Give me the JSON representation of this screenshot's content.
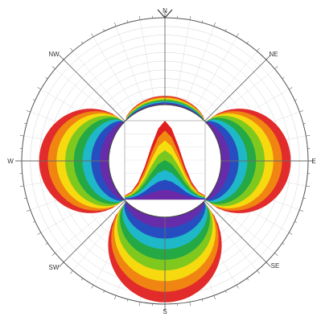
{
  "chart_data": {
    "type": "heatmap",
    "compass": {
      "N": "N",
      "NE": "NE",
      "E": "E",
      "SE": "SE",
      "S": "S",
      "SW": "SW",
      "W": "W",
      "NW": "NW"
    },
    "ring_colors": [
      "#e02020",
      "#f08a10",
      "#f5dd10",
      "#78c820",
      "#20a848",
      "#20b8d0",
      "#2848c0",
      "#6a2aa8"
    ],
    "grid": true,
    "lobes": [
      {
        "name": "N",
        "angle": 0,
        "extent": 0.1
      },
      {
        "name": "E",
        "angle": 90,
        "extent": 0.8
      },
      {
        "name": "S",
        "angle": 180,
        "extent": 0.98
      },
      {
        "name": "W",
        "angle": 270,
        "extent": 0.8
      }
    ],
    "inner_chart": {
      "type": "area",
      "x": [
        0,
        1,
        2,
        3,
        4,
        5,
        6,
        7,
        8,
        9,
        10,
        11,
        12
      ],
      "series": [
        {
          "values": [
            0.05,
            0.1,
            0.22,
            0.42,
            0.68,
            0.9,
            1.0,
            0.9,
            0.68,
            0.42,
            0.22,
            0.1,
            0.05
          ]
        }
      ]
    }
  }
}
